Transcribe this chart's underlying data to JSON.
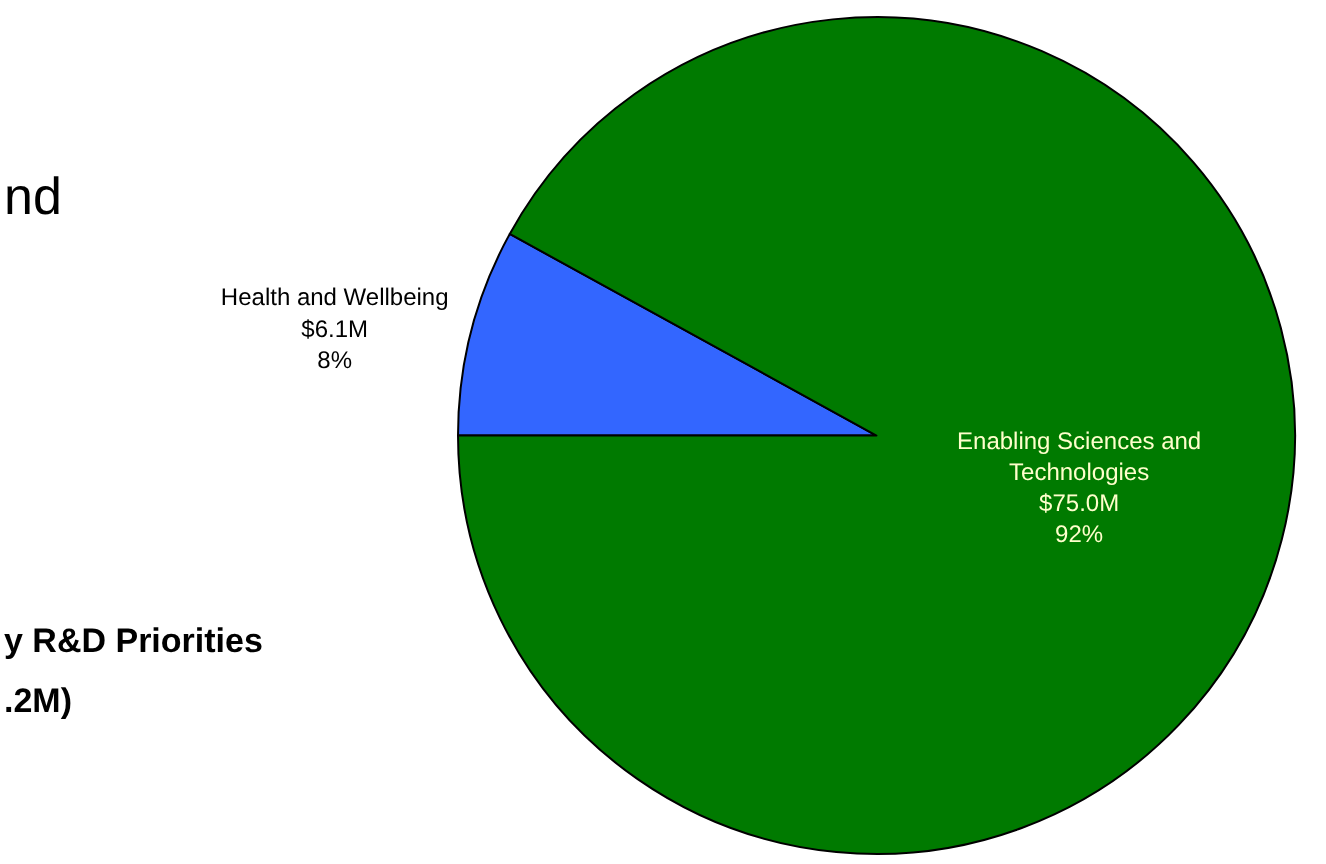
{
  "chart_data": {
    "type": "pie",
    "categories": [
      "Health and Wellbeing",
      "Enabling Sciences and Technologies"
    ],
    "values": [
      8,
      92
    ],
    "colors": [
      "#3366ff",
      "#007a00"
    ],
    "value_labels": [
      "$6.1M\n8%",
      "$75.0M\n92%"
    ],
    "annotations": [
      "nd",
      "y R&D Priorities",
      ".2M)"
    ],
    "legend": false
  }
}
